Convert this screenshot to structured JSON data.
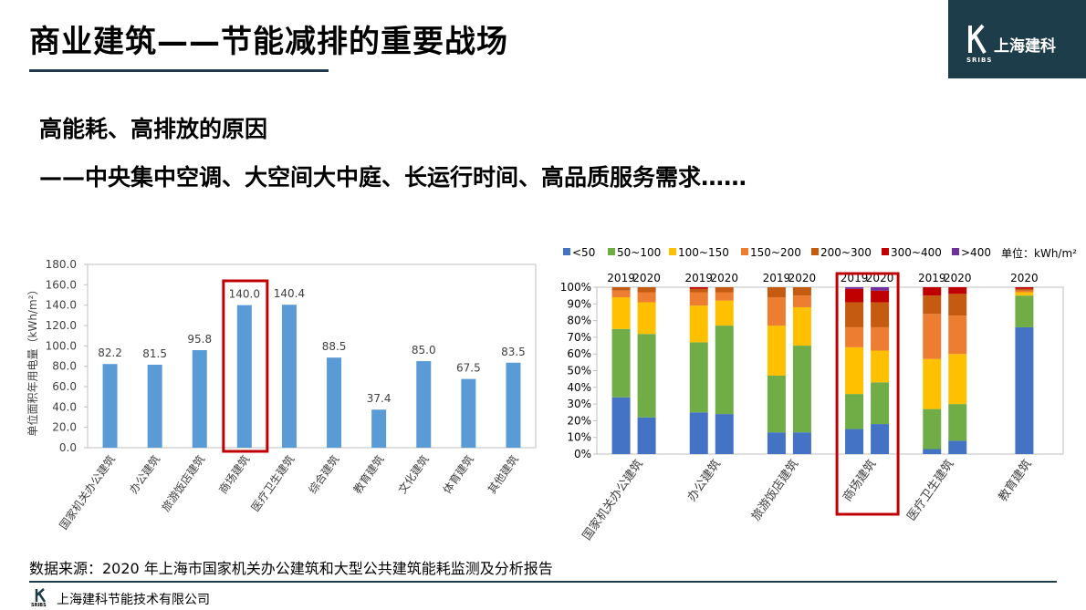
{
  "header": {
    "title": "商业建筑——节能减排的重要战场",
    "logo_text": "上海建科",
    "logo_sub": "SRIBS"
  },
  "subtitles": [
    "高能耗、高排放的原因",
    "——中央集中空调、大空间大中庭、长运行时间、高品质服务需求……"
  ],
  "footer": {
    "source": "数据来源：2020 年上海市国家机关办公建筑和大型公共建筑能耗监测及分析报告",
    "company": "上海建科节能技术有限公司",
    "mark_sub": "SRIBS"
  },
  "colors": {
    "bar": "#5b9bd5",
    "highlight": "#c00000",
    "header_bg": "#1d3d4a"
  },
  "chart_data": [
    {
      "type": "bar",
      "categories": [
        "国家机关办公建筑",
        "办公建筑",
        "旅游饭店建筑",
        "商场建筑",
        "医疗卫生建筑",
        "综合建筑",
        "教育建筑",
        "文化建筑",
        "体育建筑",
        "其他建筑"
      ],
      "values": [
        82.2,
        81.5,
        95.8,
        140.0,
        140.4,
        88.5,
        37.4,
        85.0,
        67.5,
        83.5
      ],
      "value_labels": [
        "82.2",
        "81.5",
        "95.8",
        "140.0",
        "140.4",
        "88.5",
        "37.4",
        "85.0",
        "67.5",
        "83.5"
      ],
      "ylabel": "单位面积年用电量（kWh/m²）",
      "ylim": [
        0,
        180
      ],
      "yticks": [
        "0.0",
        "20.0",
        "40.0",
        "60.0",
        "80.0",
        "100.0",
        "120.0",
        "140.0",
        "160.0",
        "180.0"
      ],
      "highlight_category": "商场建筑",
      "grid": false
    },
    {
      "type": "stacked-bar",
      "legend": [
        "<50",
        "50~100",
        "100~150",
        "150~200",
        "200~300",
        "300~400",
        ">400"
      ],
      "unit_label": "单位：kWh/m²",
      "colors": [
        "#4472c4",
        "#70ad47",
        "#ffc000",
        "#ed7d31",
        "#c55a11",
        "#c00000",
        "#7030a0"
      ],
      "yticks": [
        "0%",
        "10%",
        "20%",
        "30%",
        "40%",
        "50%",
        "60%",
        "70%",
        "80%",
        "90%",
        "100%"
      ],
      "ylim": [
        0,
        100
      ],
      "highlight_group": "商场建筑",
      "groups": [
        {
          "name": "国家机关办公建筑",
          "bars": [
            {
              "year": "2019",
              "values": [
                34,
                41,
                19,
                4,
                2,
                0,
                0
              ]
            },
            {
              "year": "2020",
              "values": [
                22,
                50,
                19,
                6,
                3,
                0,
                0
              ]
            }
          ]
        },
        {
          "name": "办公建筑",
          "bars": [
            {
              "year": "2019",
              "values": [
                25,
                42,
                22,
                8,
                2,
                1,
                0
              ]
            },
            {
              "year": "2020",
              "values": [
                24,
                53,
                15,
                5,
                3,
                0,
                0
              ]
            }
          ]
        },
        {
          "name": "旅游饭店建筑",
          "bars": [
            {
              "year": "2019",
              "values": [
                13,
                34,
                30,
                17,
                6,
                0,
                0
              ]
            },
            {
              "year": "2020",
              "values": [
                13,
                52,
                23,
                7,
                5,
                0,
                0
              ]
            }
          ]
        },
        {
          "name": "商场建筑",
          "bars": [
            {
              "year": "2019",
              "values": [
                15,
                21,
                28,
                12,
                15,
                8,
                1
              ]
            },
            {
              "year": "2020",
              "values": [
                18,
                25,
                19,
                14,
                15,
                7,
                2
              ]
            }
          ]
        },
        {
          "name": "医疗卫生建筑",
          "bars": [
            {
              "year": "2019",
              "values": [
                3,
                24,
                30,
                27,
                11,
                5,
                0
              ]
            },
            {
              "year": "2020",
              "values": [
                8,
                22,
                30,
                23,
                13,
                4,
                0
              ]
            }
          ]
        },
        {
          "name": "教育建筑",
          "bars": [
            {
              "year": "2020",
              "values": [
                76,
                19,
                2,
                1,
                1,
                1,
                0
              ]
            }
          ]
        }
      ]
    }
  ]
}
